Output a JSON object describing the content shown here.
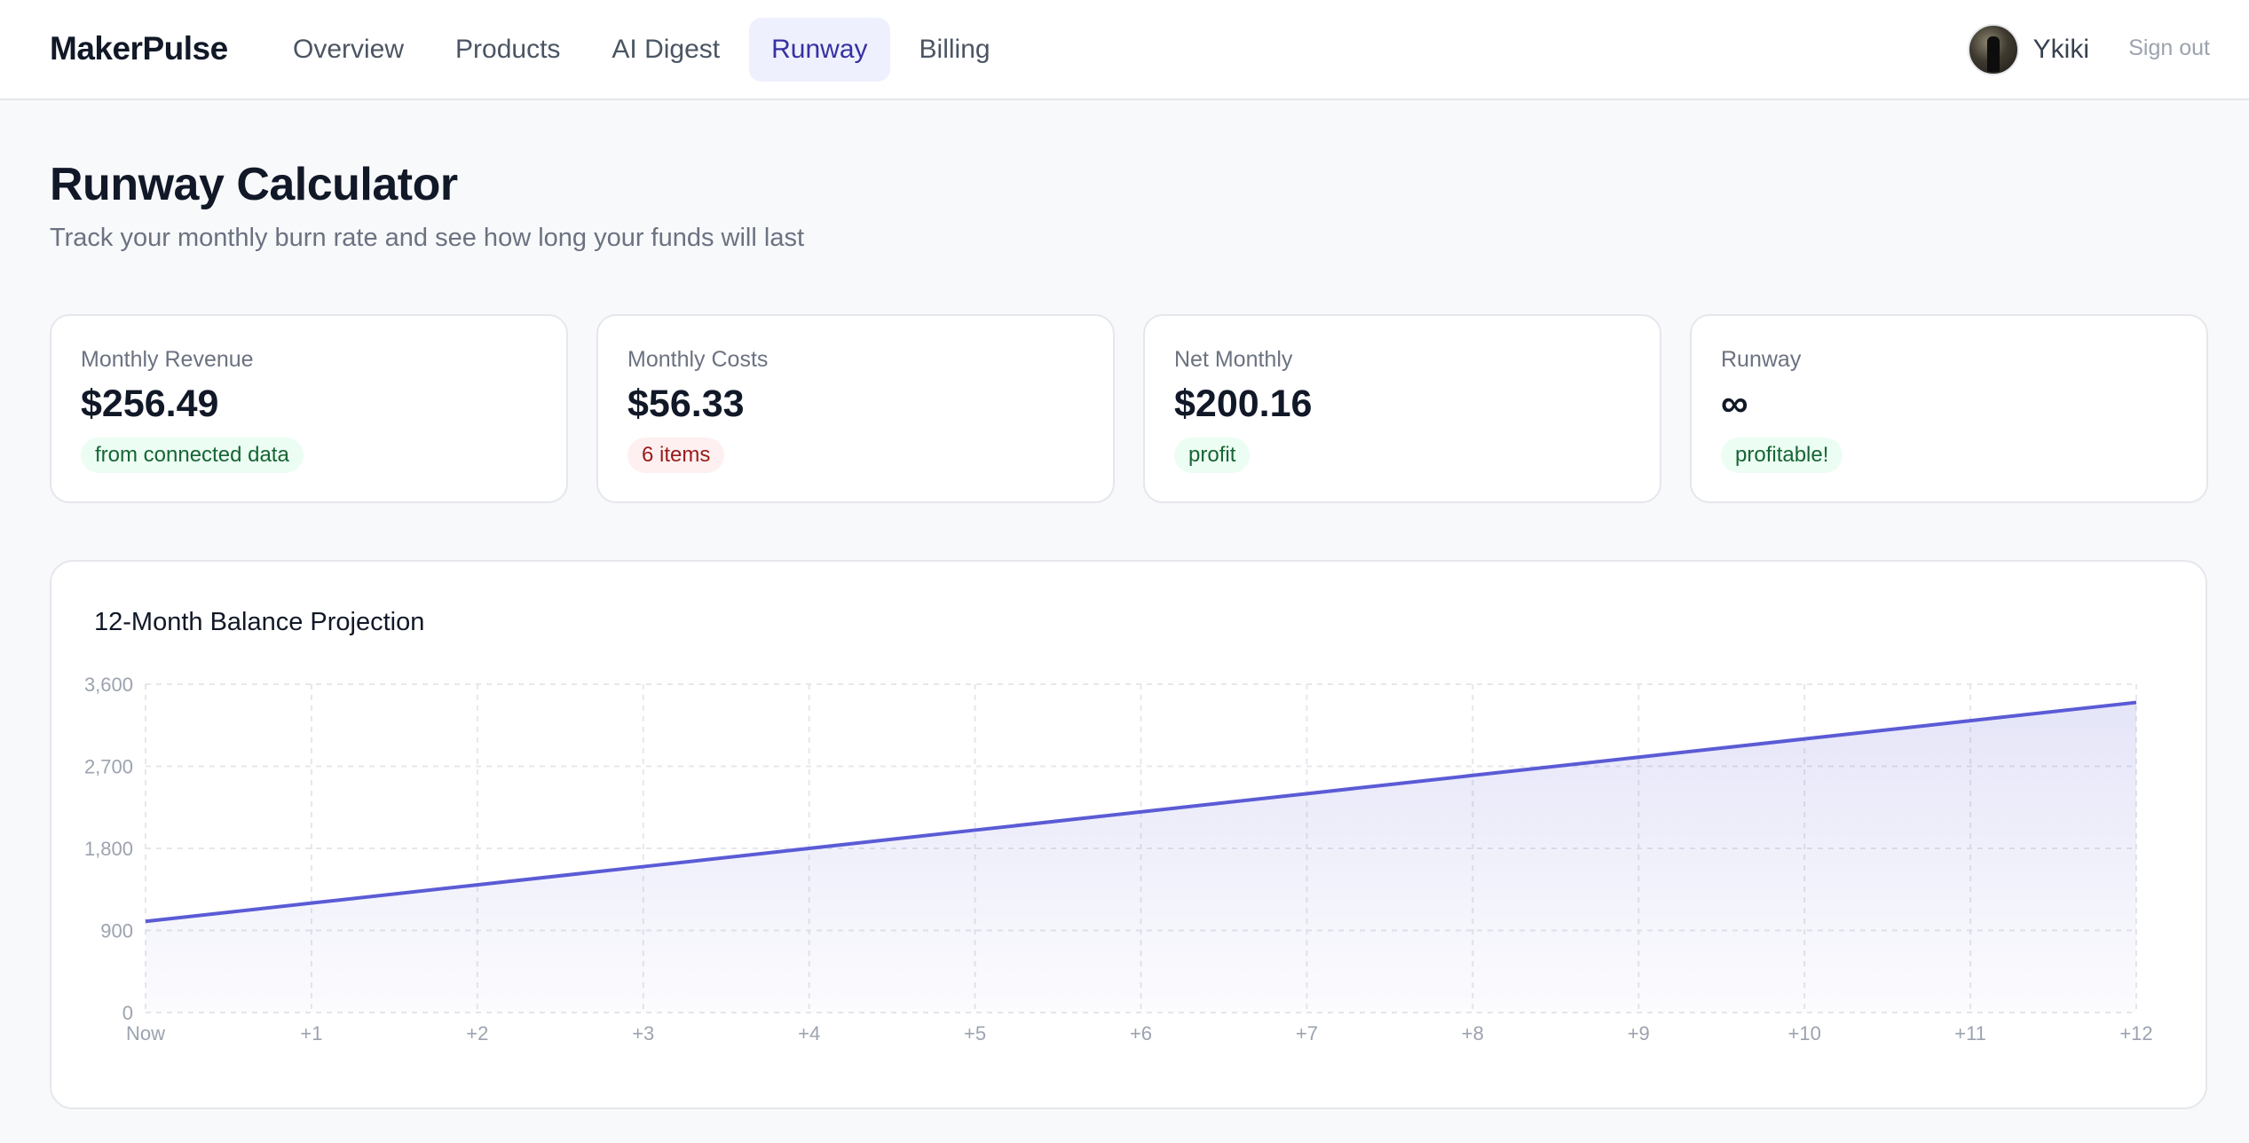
{
  "header": {
    "brand": "MakerPulse",
    "nav": [
      {
        "label": "Overview",
        "active": false
      },
      {
        "label": "Products",
        "active": false
      },
      {
        "label": "AI Digest",
        "active": false
      },
      {
        "label": "Runway",
        "active": true
      },
      {
        "label": "Billing",
        "active": false
      }
    ],
    "user": {
      "name": "Ykiki",
      "avatar_icon": "avatar-photo"
    },
    "signout_label": "Sign out"
  },
  "page": {
    "title": "Runway Calculator",
    "subtitle": "Track your monthly burn rate and see how long your funds will last"
  },
  "stats": [
    {
      "label": "Monthly Revenue",
      "value": "$256.49",
      "badge": "from connected data",
      "badge_tone": "green"
    },
    {
      "label": "Monthly Costs",
      "value": "$56.33",
      "badge": "6 items",
      "badge_tone": "red"
    },
    {
      "label": "Net Monthly",
      "value": "$200.16",
      "badge": "profit",
      "badge_tone": "green"
    },
    {
      "label": "Runway",
      "value": "∞",
      "badge": "profitable!",
      "badge_tone": "green"
    }
  ],
  "chart": {
    "title": "12-Month Balance Projection"
  },
  "chart_data": {
    "type": "area",
    "title": "12-Month Balance Projection",
    "xlabel": "",
    "ylabel": "",
    "categories": [
      "Now",
      "+1",
      "+2",
      "+3",
      "+4",
      "+5",
      "+6",
      "+7",
      "+8",
      "+9",
      "+10",
      "+11",
      "+12"
    ],
    "series": [
      {
        "values": [
          1000,
          1200,
          1400,
          1600,
          1800,
          2000,
          2200,
          2400,
          2600,
          2800,
          3000,
          3200,
          3400
        ]
      }
    ],
    "ylim": [
      0,
      3600
    ],
    "yticks": [
      "0",
      "900",
      "1,800",
      "2,700",
      "3,600"
    ],
    "grid": true,
    "line_color": "#5b5bd6",
    "fill_color": "#e8e8fb"
  }
}
